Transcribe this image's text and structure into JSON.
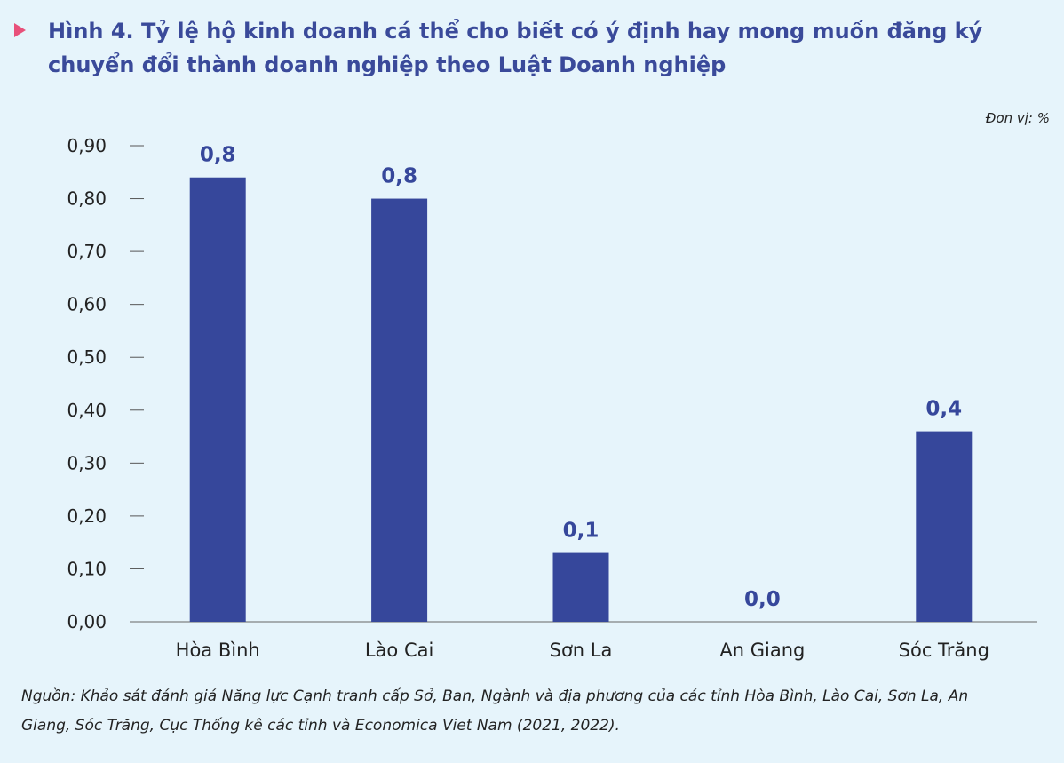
{
  "title": "Hình 4. Tỷ lệ hộ kinh doanh cá thể cho biết có ý định hay mong muốn đăng ký chuyển đổi thành doanh nghiệp theo Luật Doanh nghiệp",
  "unit": "Đơn vị: %",
  "source": "Nguồn: Khảo sát đánh giá Năng lực Cạnh tranh cấp Sở, Ban, Ngành và địa phương của các tỉnh Hòa Bình, Lào Cai, Sơn La, An Giang, Sóc Trăng, Cục Thống kê các tỉnh và Economica Viet Nam (2021, 2022).",
  "colors": {
    "bar": "#36479b",
    "label": "#36479b",
    "marker": "#e8507a"
  },
  "chart_data": {
    "type": "bar",
    "categories": [
      "Hòa Bình",
      "Lào Cai",
      "Sơn La",
      "An Giang",
      "Sóc Trăng"
    ],
    "values": [
      0.84,
      0.8,
      0.13,
      0.0,
      0.36
    ],
    "data_labels": [
      "0,8",
      "0,8",
      "0,1",
      "0,0",
      "0,4"
    ],
    "y_ticks": [
      "0,00",
      "0,10",
      "0,20",
      "0,30",
      "0,40",
      "0,50",
      "0,60",
      "0,70",
      "0,80",
      "0,90"
    ],
    "ylim": [
      0,
      0.9
    ],
    "grid": false,
    "xlabel": "",
    "ylabel": ""
  }
}
